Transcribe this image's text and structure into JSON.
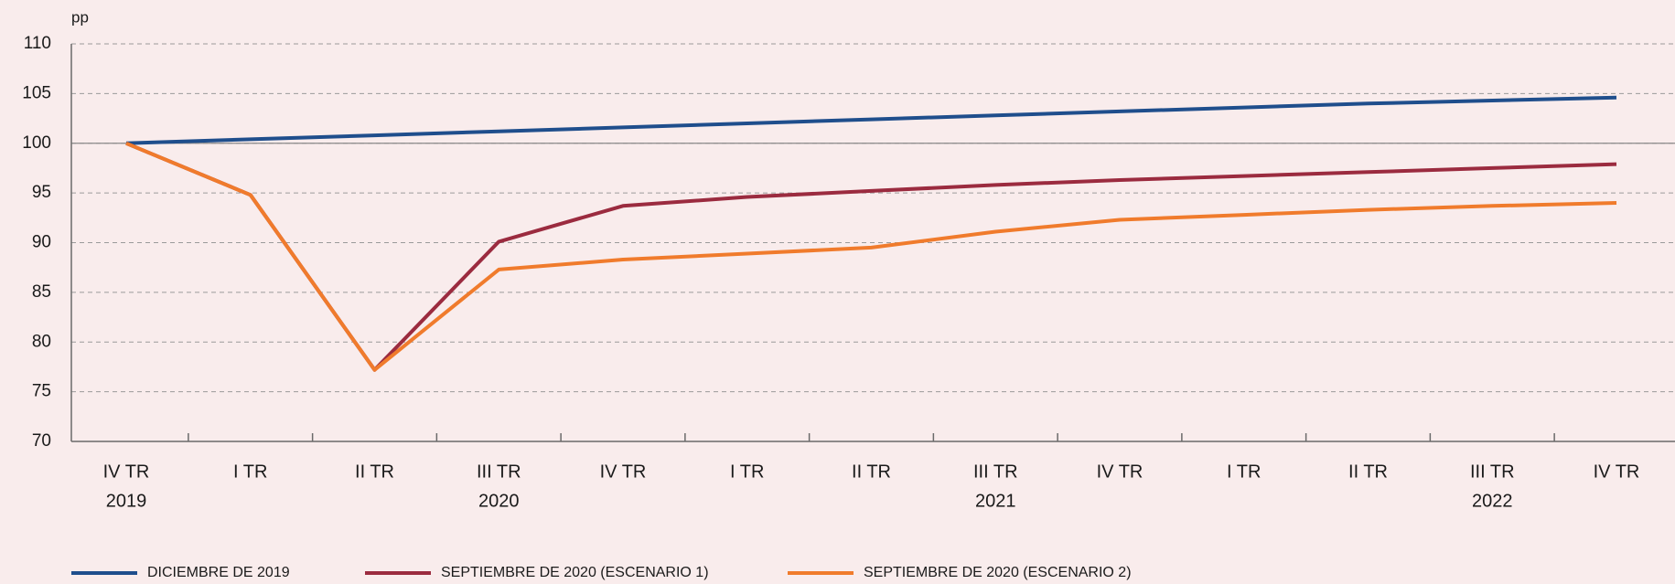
{
  "chart_data": {
    "type": "line",
    "y_unit_label": "pp",
    "categories": [
      "IV TR",
      "I TR",
      "II TR",
      "III TR",
      "IV TR",
      "I TR",
      "II TR",
      "III TR",
      "IV TR",
      "I TR",
      "II TR",
      "III TR",
      "IV TR"
    ],
    "category_years": [
      "2019",
      null,
      null,
      "2020",
      null,
      null,
      null,
      "2021",
      null,
      null,
      null,
      "2022",
      null
    ],
    "series": [
      {
        "name": "DICIEMBRE DE 2019",
        "color": "#1f4e8c",
        "values": [
          100,
          100.4,
          100.8,
          101.2,
          101.6,
          102.0,
          102.4,
          102.8,
          103.2,
          103.6,
          104.0,
          104.3,
          104.6
        ]
      },
      {
        "name": "SEPTIEMBRE DE 2020 (ESCENARIO 1)",
        "color": "#9b2b3f",
        "values": [
          100,
          94.8,
          77.2,
          90.1,
          93.7,
          94.6,
          95.2,
          95.8,
          96.3,
          96.7,
          97.1,
          97.5,
          97.9
        ]
      },
      {
        "name": "SEPTIEMBRE DE 2020 (ESCENARIO 2)",
        "color": "#f07b2c",
        "values": [
          100,
          94.8,
          77.2,
          87.3,
          88.3,
          88.9,
          89.5,
          91.1,
          92.3,
          92.8,
          93.3,
          93.7,
          94.0
        ]
      }
    ],
    "ylim": [
      70,
      110
    ],
    "yticks": [
      70,
      75,
      80,
      85,
      90,
      95,
      100,
      105,
      110
    ],
    "reference_line": 100,
    "grid": true
  }
}
